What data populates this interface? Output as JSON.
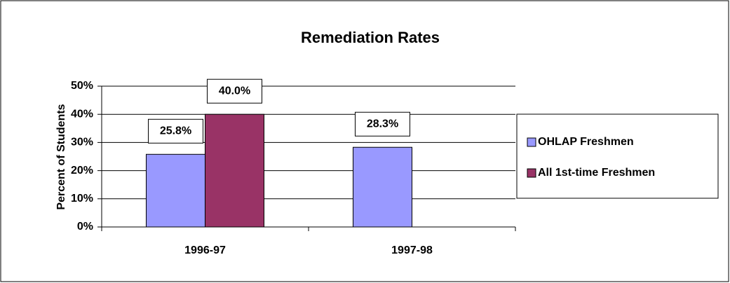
{
  "chart_data": {
    "type": "bar",
    "title": "Remediation Rates",
    "y_label": "Percent of Students",
    "categories": [
      "1996-97",
      "1997-98"
    ],
    "series": [
      {
        "name": "OHLAP Freshmen",
        "color": "#9999ff",
        "values": [
          25.8,
          28.3
        ],
        "value_labels": [
          "25.8%",
          "28.3%"
        ]
      },
      {
        "name": "All 1st-time Freshmen",
        "color": "#993366",
        "values": [
          40.0,
          null
        ],
        "value_labels": [
          "40.0%",
          null
        ]
      }
    ],
    "ylim": [
      0,
      50
    ],
    "yticks": [
      {
        "value": 0,
        "label": "0%"
      },
      {
        "value": 10,
        "label": "10%"
      },
      {
        "value": 20,
        "label": "20%"
      },
      {
        "value": 30,
        "label": "30%"
      },
      {
        "value": 40,
        "label": "40%"
      },
      {
        "value": 50,
        "label": "50%"
      }
    ],
    "grid": true,
    "legend": "right"
  }
}
